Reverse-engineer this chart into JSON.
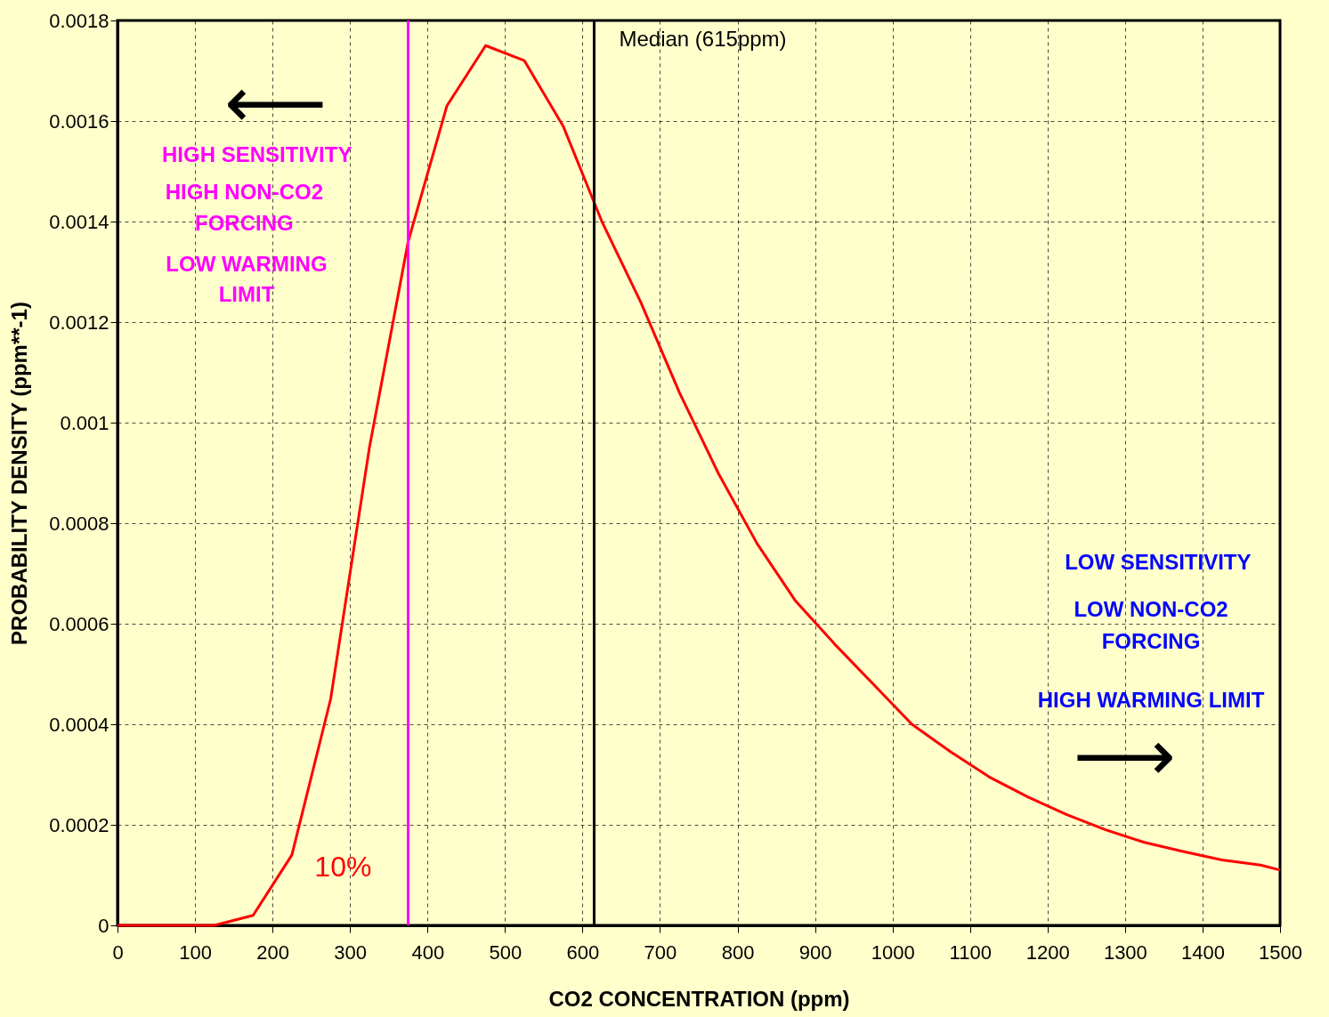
{
  "chart_data": {
    "type": "line",
    "xlabel": "CO2 CONCENTRATION  (ppm)",
    "ylabel": "PROBABILITY DENSITY  (ppm**-1)",
    "x": [
      0,
      125,
      175,
      225,
      275,
      325,
      375,
      425,
      475,
      525,
      575,
      625,
      675,
      725,
      775,
      825,
      875,
      925,
      975,
      1025,
      1075,
      1125,
      1175,
      1225,
      1275,
      1325,
      1375,
      1425,
      1475,
      1500
    ],
    "series": [
      {
        "color": "#ff0000",
        "values": [
          0,
          0,
          2e-05,
          0.00014,
          0.00045,
          0.00095,
          0.00136,
          0.00163,
          0.00175,
          0.00172,
          0.00159,
          0.0014,
          0.00124,
          0.00106,
          0.0009,
          0.00076,
          0.000645,
          0.00056,
          0.00048,
          0.0004,
          0.000345,
          0.000295,
          0.000255,
          0.00022,
          0.00019,
          0.000165,
          0.000147,
          0.00013,
          0.00012,
          0.00011
        ]
      }
    ],
    "xlim": [
      0,
      1500
    ],
    "xticks": [
      0,
      100,
      200,
      300,
      400,
      500,
      600,
      700,
      800,
      900,
      1000,
      1100,
      1200,
      1300,
      1400,
      1500
    ],
    "ylim": [
      0,
      0.0018
    ],
    "yticks": [
      0,
      0.0002,
      0.0004,
      0.0006,
      0.0008,
      0.001,
      0.0012,
      0.0014,
      0.0016,
      0.0018
    ],
    "grid": true,
    "marker": "none",
    "line_style": "solid",
    "ref_lines": [
      {
        "axis": "x",
        "value": 375,
        "color": "#ff00ff"
      },
      {
        "axis": "x",
        "value": 615,
        "label": "Median (615ppm)",
        "color": "#000000"
      }
    ],
    "annotations": [
      "⟵",
      "HIGH SENSITIVITY",
      "HIGH NON-CO2",
      "FORCING",
      "LOW WARMING",
      "LIMIT",
      "LOW SENSITIVITY",
      "LOW NON-CO2",
      "FORCING",
      "HIGH WARMING LIMIT",
      "⟶",
      "10%"
    ]
  }
}
